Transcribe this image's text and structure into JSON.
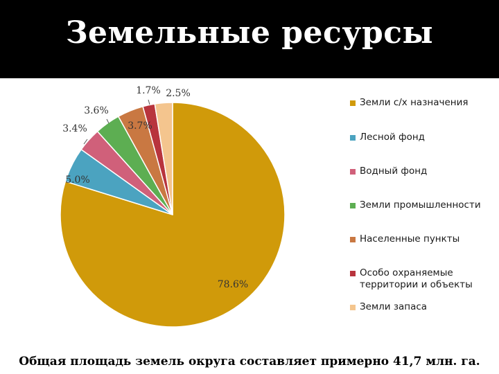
{
  "title": "Земельные ресурсы",
  "footer": "Общая площадь земель округа составляет примерно 41,7 млн. га.",
  "chart_data": {
    "type": "pie",
    "slices": [
      {
        "label": "Земли с/х назначения",
        "value": 78.6,
        "display": "78.6%",
        "color": "#D09A0A"
      },
      {
        "label": "Лесной фонд",
        "value": 5.0,
        "display": "5.0%",
        "color": "#4BA3C0"
      },
      {
        "label": "Водный фонд",
        "value": 3.4,
        "display": "3.4%",
        "color": "#D0607A"
      },
      {
        "label": "Земли промышленности",
        "value": 3.6,
        "display": "3.6%",
        "color": "#5DAE52"
      },
      {
        "label": "Населенные пункты",
        "value": 3.7,
        "display": "3.7%",
        "color": "#C97842"
      },
      {
        "label": "Особо охраняемые территории и объекты",
        "value": 1.7,
        "display": "1.7%",
        "color": "#B8343D"
      },
      {
        "label": "Земли запаса",
        "value": 2.5,
        "display": "2.5%",
        "color": "#F4C58E"
      }
    ],
    "legend_position": "right"
  }
}
